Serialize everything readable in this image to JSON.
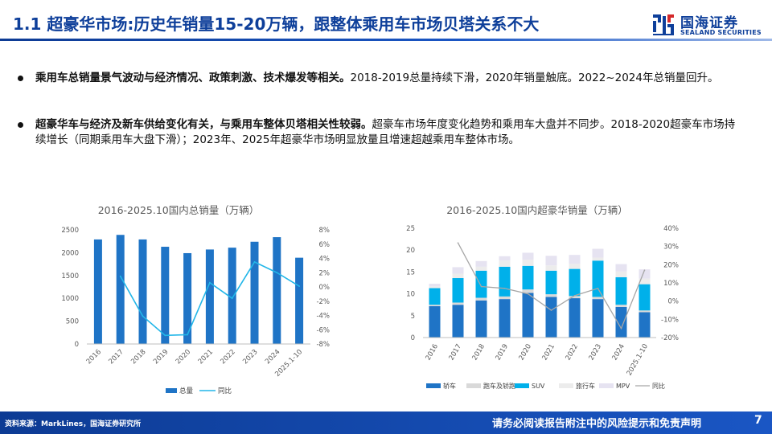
{
  "header": {
    "title": "1.1 超豪华市场:历史年销量15-20万辆，跟整体乘用车市场贝塔关系不大",
    "logo_cn": "国海证券",
    "logo_en": "SEALAND SECURITIES"
  },
  "bullets": [
    {
      "bold": "乘用车总销量景气波动与经济情况、政策刺激、技术爆发等相关。",
      "rest": "2018-2019总量持续下滑，2020年销量触底。2022~2024年总销量回升。"
    },
    {
      "bold": "超豪华车与经济及新车供给变化有关，与乘用车整体贝塔相关性较弱。",
      "rest": "超豪车市场年度变化趋势和乘用车大盘并不同步。2018-2020超豪车市场持续增长（同期乘用车大盘下滑）；2023年、2025年超豪华市场明显放量且增速超越乘用车整体市场。"
    }
  ],
  "colors": {
    "brand": "#0e3f9a",
    "bar_blue": "#1f74c6",
    "line_cyan": "#22b6e8",
    "sedan": "#1f74c6",
    "sports": "#d9d9d9",
    "suv": "#00b0ea",
    "wagon": "#ececec",
    "mpv": "#e6e3f1",
    "yoy_gray": "#a6a6a6"
  },
  "chart_data": [
    {
      "type": "bar",
      "title": "2016-2025.10国内总销量（万辆）",
      "categories": [
        "2016",
        "2017",
        "2018",
        "2019",
        "2020",
        "2021",
        "2022",
        "2023",
        "2024",
        "2025.1-10"
      ],
      "series": [
        {
          "name": "总量",
          "kind": "bar",
          "axis": "left",
          "values": [
            2290,
            2390,
            2290,
            2130,
            1990,
            2070,
            2110,
            2240,
            2340,
            1890
          ]
        },
        {
          "name": "同比",
          "kind": "line",
          "axis": "right",
          "unit": "%",
          "values": [
            null,
            1.5,
            -4.1,
            -6.8,
            -6.7,
            0.6,
            -1.6,
            3.5,
            2.0,
            0.1
          ]
        }
      ],
      "ylim": [
        0,
        2500
      ],
      "y_ticks": [
        "0",
        "500",
        "1000",
        "1500",
        "2000",
        "2500"
      ],
      "y2lim": [
        -8,
        8
      ],
      "y2_ticks": [
        "8%",
        "6%",
        "4%",
        "2%",
        "0%",
        "-2%",
        "-4%",
        "-6%",
        "-8%"
      ],
      "legend": [
        "总量",
        "同比"
      ]
    },
    {
      "type": "bar",
      "stacked": true,
      "title": "2016-2025.10国内超豪华销量（万辆）",
      "categories": [
        "2016",
        "2017",
        "2018",
        "2019",
        "2020",
        "2021",
        "2022",
        "2023",
        "2024",
        "2025.1-10"
      ],
      "series": [
        {
          "name": "轿车",
          "kind": "bar",
          "values": [
            7.2,
            7.5,
            8.5,
            8.8,
            10.2,
            9.3,
            9.0,
            8.8,
            7.0,
            5.8
          ]
        },
        {
          "name": "跑车及轿跑",
          "kind": "bar",
          "values": [
            0.3,
            0.5,
            0.6,
            0.6,
            0.8,
            0.6,
            0.5,
            0.5,
            0.5,
            0.4
          ]
        },
        {
          "name": "SUV",
          "kind": "bar",
          "values": [
            3.8,
            5.6,
            6.2,
            6.8,
            5.4,
            5.4,
            6.2,
            8.3,
            6.3,
            6.0
          ]
        },
        {
          "name": "旅行车",
          "kind": "bar",
          "values": [
            0.4,
            1.0,
            0.9,
            1.4,
            1.4,
            1.2,
            1.2,
            0.7,
            1.3,
            1.3
          ]
        },
        {
          "name": "MPV",
          "kind": "bar",
          "values": [
            0.6,
            1.5,
            1.3,
            1.0,
            1.6,
            2.2,
            2.0,
            2.0,
            1.7,
            2.1
          ]
        },
        {
          "name": "同比",
          "kind": "line",
          "axis": "right",
          "unit": "%",
          "values": [
            null,
            32,
            8,
            7,
            4,
            -5,
            3,
            7,
            -15,
            17
          ]
        }
      ],
      "ylim": [
        0,
        25
      ],
      "y_ticks": [
        "0",
        "5",
        "10",
        "15",
        "20",
        "25"
      ],
      "y2lim": [
        -20,
        40
      ],
      "y2_ticks": [
        "40%",
        "30%",
        "20%",
        "10%",
        "0%",
        "-10%",
        "-20%"
      ],
      "legend": [
        "轿车",
        "跑车及轿跑",
        "SUV",
        "旅行车",
        "MPV",
        "同比"
      ]
    }
  ],
  "footer": {
    "source": "资料来源：MarkLines，国海证券研究所",
    "disclaimer": "请务必阅读报告附注中的风险提示和免责声明",
    "page": "7"
  }
}
